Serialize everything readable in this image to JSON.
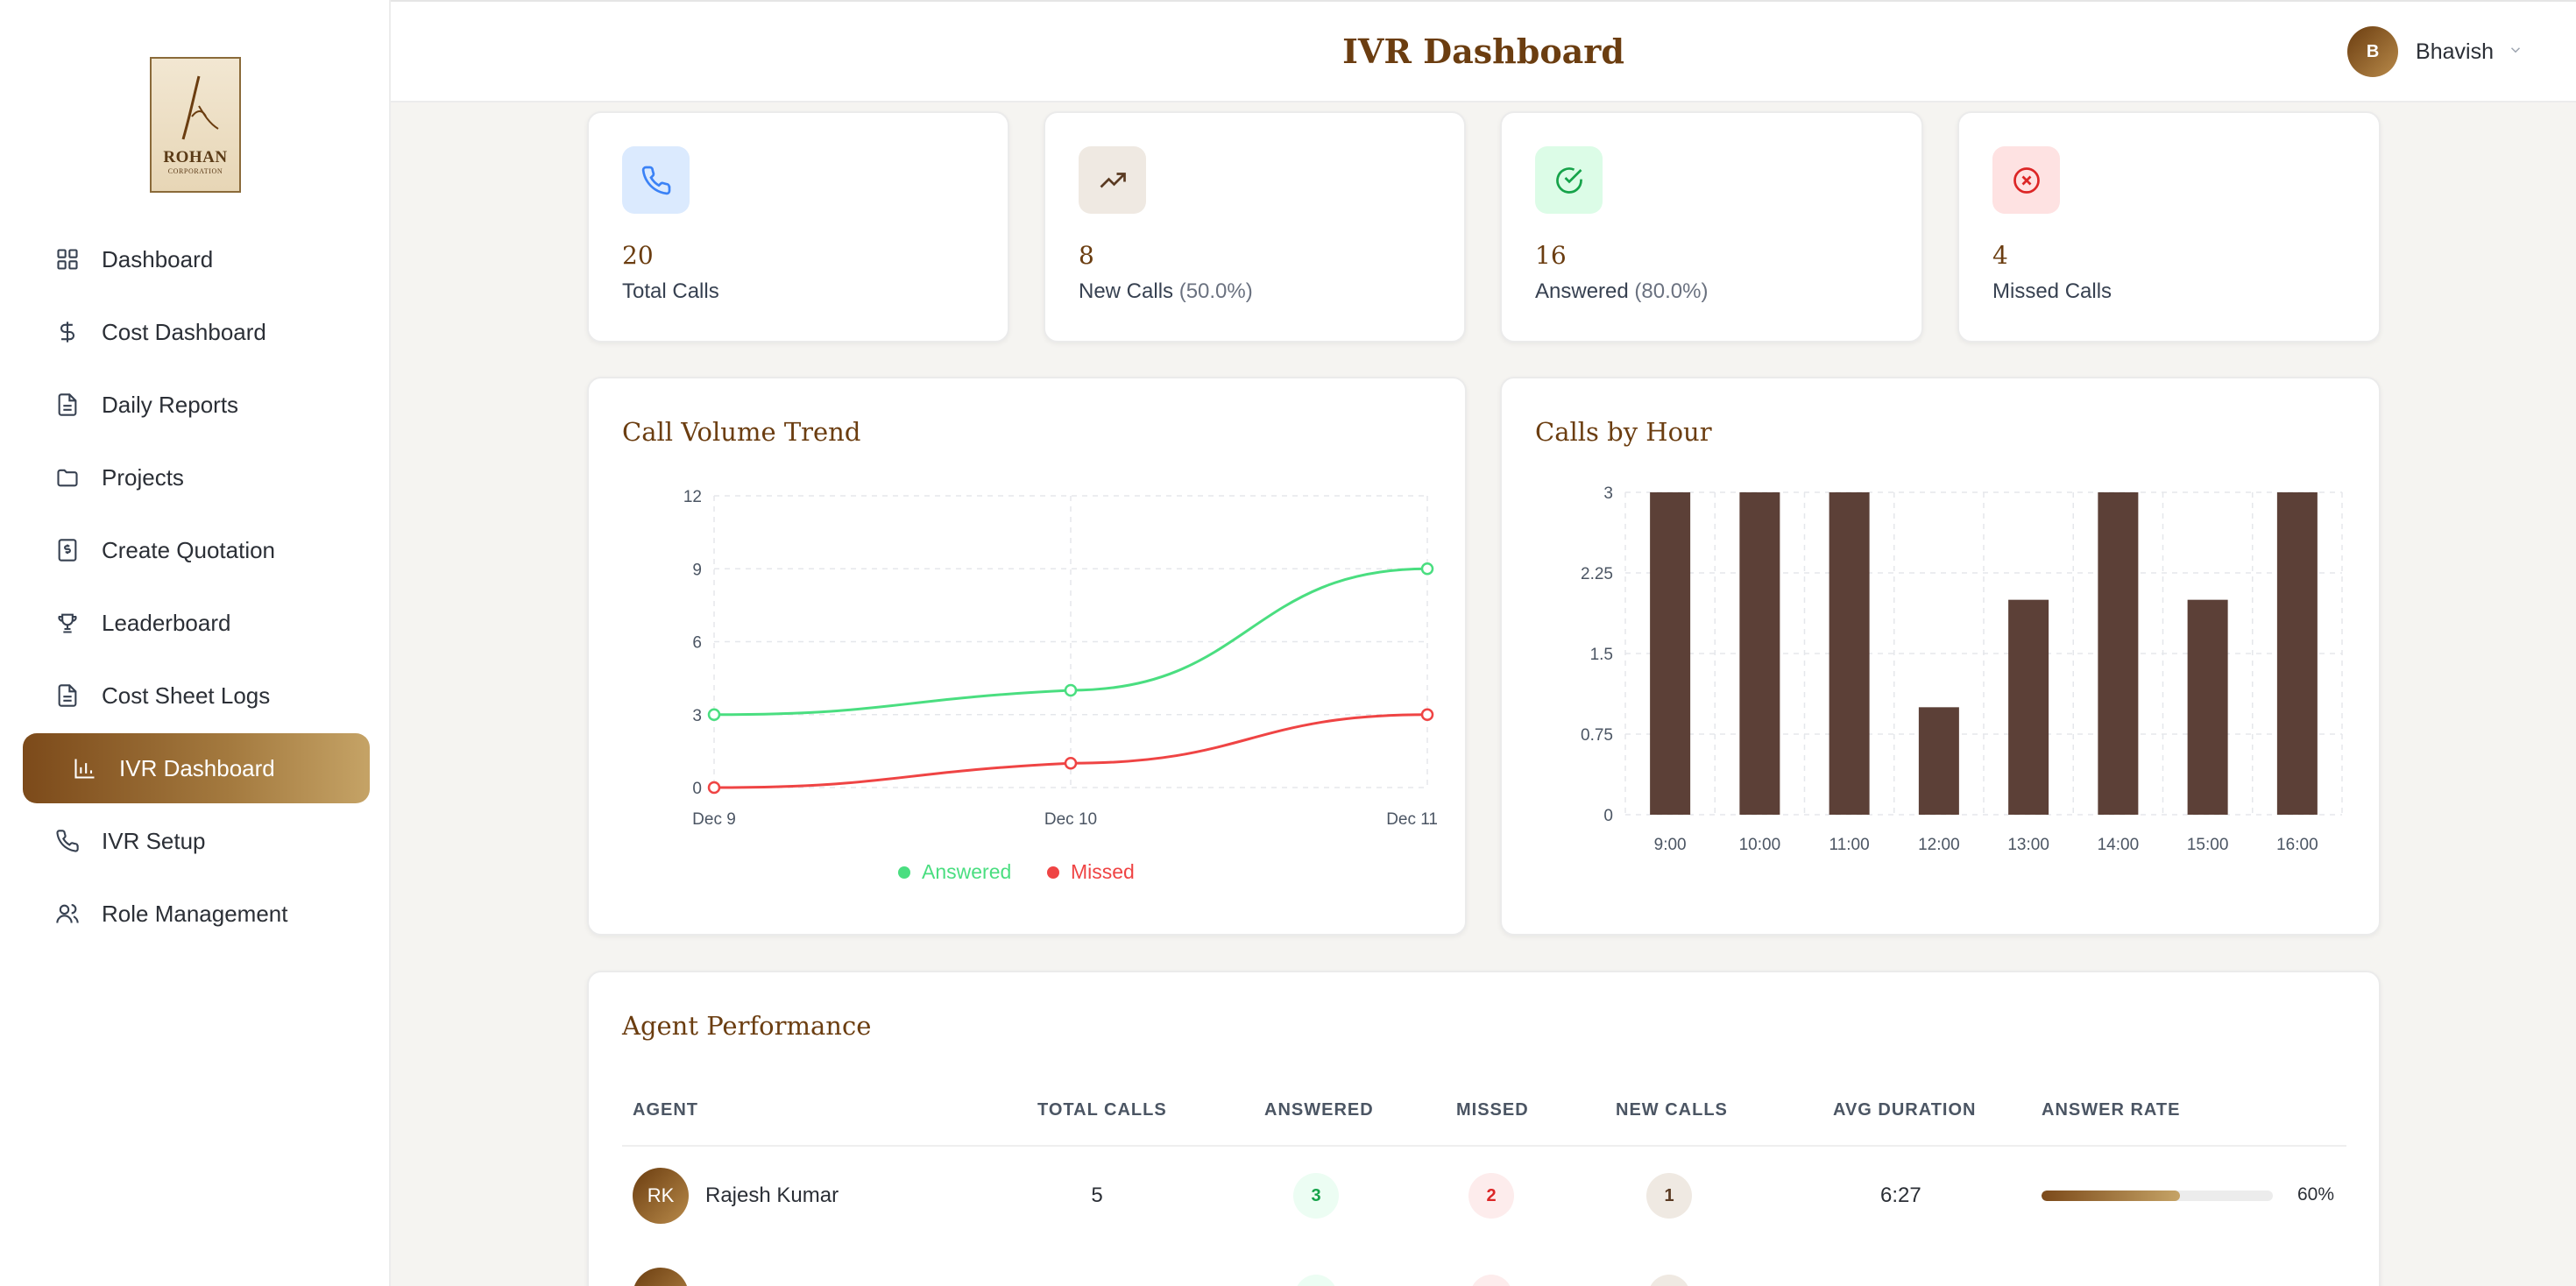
{
  "sidebar": {
    "logo": {
      "text": "ROHAN",
      "subtext": "CORPORATION"
    },
    "items": [
      {
        "label": "Dashboard",
        "icon": "grid-icon"
      },
      {
        "label": "Cost Dashboard",
        "icon": "dollar-icon"
      },
      {
        "label": "Daily Reports",
        "icon": "document-icon"
      },
      {
        "label": "Projects",
        "icon": "folder-icon"
      },
      {
        "label": "Create Quotation",
        "icon": "receipt-icon"
      },
      {
        "label": "Leaderboard",
        "icon": "trophy-icon"
      },
      {
        "label": "Cost Sheet Logs",
        "icon": "document-icon"
      },
      {
        "label": "IVR Dashboard",
        "icon": "bar-chart-icon",
        "active": true
      },
      {
        "label": "IVR Setup",
        "icon": "phone-icon"
      },
      {
        "label": "Role Management",
        "icon": "users-icon"
      }
    ]
  },
  "header": {
    "title": "IVR Dashboard",
    "user": {
      "initial": "B",
      "name": "Bhavish"
    }
  },
  "stats": [
    {
      "value": "20",
      "label": "Total Calls",
      "pct": "",
      "icon": "phone-icon",
      "color": "#3b82f6",
      "bg": "#dbeafe"
    },
    {
      "value": "8",
      "label": "New Calls",
      "pct": "(50.0%)",
      "icon": "trending-up-icon",
      "color": "#5a3a22",
      "bg": "#efe9e2"
    },
    {
      "value": "16",
      "label": "Answered",
      "pct": "(80.0%)",
      "icon": "check-circle-icon",
      "color": "#16a34a",
      "bg": "#dcfce7"
    },
    {
      "value": "4",
      "label": "Missed Calls",
      "pct": "",
      "icon": "x-circle-icon",
      "color": "#dc2626",
      "bg": "#fee2e2"
    }
  ],
  "chart_data": [
    {
      "type": "line",
      "title": "Call Volume Trend",
      "x": [
        "Dec 9",
        "Dec 10",
        "Dec 11"
      ],
      "series": [
        {
          "name": "Answered",
          "values": [
            3,
            4,
            9
          ],
          "color": "#4ade80"
        },
        {
          "name": "Missed",
          "values": [
            0,
            1,
            3
          ],
          "color": "#ef4444"
        }
      ],
      "yticks": [
        "0",
        "3",
        "6",
        "9",
        "12"
      ],
      "ylim": [
        0,
        12
      ],
      "grid": true,
      "legend": "bottom"
    },
    {
      "type": "bar",
      "title": "Calls by Hour",
      "categories": [
        "9:00",
        "10:00",
        "11:00",
        "12:00",
        "13:00",
        "14:00",
        "15:00",
        "16:00"
      ],
      "values": [
        3,
        3,
        3,
        1,
        2,
        3,
        2,
        3
      ],
      "yticks": [
        "0",
        "0.75",
        "1.5",
        "2.25",
        "3"
      ],
      "ylim": [
        0,
        3
      ],
      "color": "#5c4037",
      "grid": true
    }
  ],
  "agents": {
    "title": "Agent Performance",
    "columns": [
      "AGENT",
      "TOTAL CALLS",
      "ANSWERED",
      "MISSED",
      "NEW CALLS",
      "AVG DURATION",
      "ANSWER RATE"
    ],
    "rows": [
      {
        "initials": "RK",
        "name": "Rajesh Kumar",
        "total": "5",
        "answered": "3",
        "missed": "2",
        "new_calls": "1",
        "avg_duration": "6:27",
        "answer_rate": "60%",
        "rate_fraction": 0.6
      }
    ]
  }
}
